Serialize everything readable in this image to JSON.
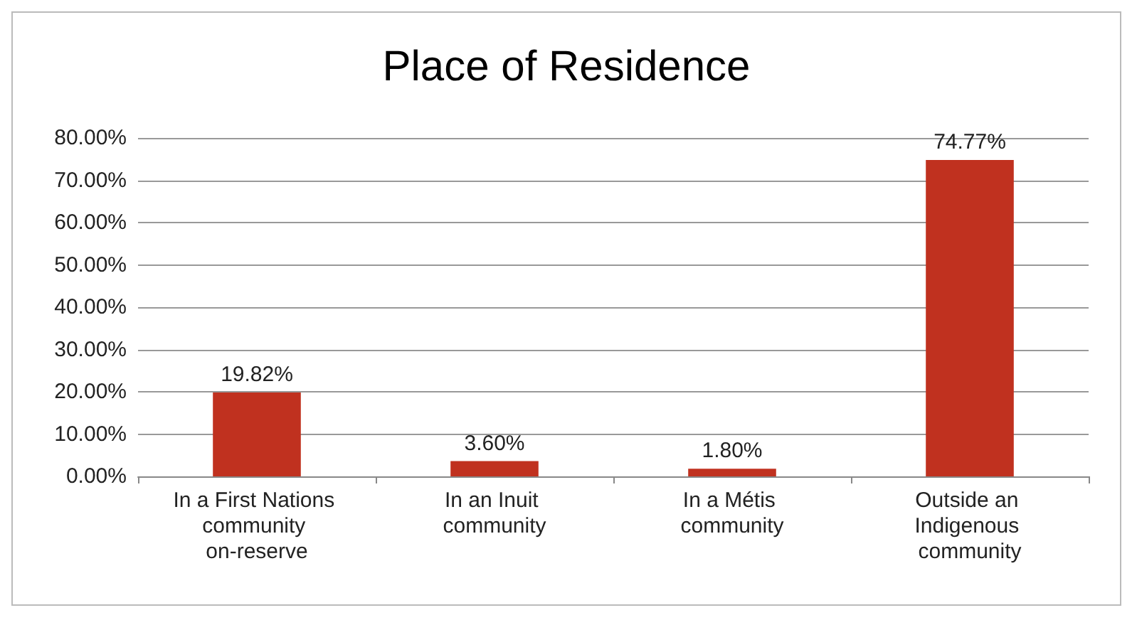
{
  "chart_data": {
    "type": "bar",
    "title": "Place of Residence",
    "categories": [
      "In a First Nations community on-reserve",
      "In an Inuit community",
      "In a Métis community",
      "Outside an Indigenous community"
    ],
    "values": [
      19.82,
      3.6,
      1.8,
      74.77
    ],
    "value_labels": [
      "19.82%",
      "3.60%",
      "1.80%",
      "74.77%"
    ],
    "color": "#c0311f",
    "ylim": [
      0,
      80
    ],
    "yticks": [
      {
        "value": 0,
        "label": "0.00%"
      },
      {
        "value": 10,
        "label": "10.00%"
      },
      {
        "value": 20,
        "label": "20.00%"
      },
      {
        "value": 30,
        "label": "30.00%"
      },
      {
        "value": 40,
        "label": "40.00%"
      },
      {
        "value": 50,
        "label": "50.00%"
      },
      {
        "value": 60,
        "label": "60.00%"
      },
      {
        "value": 70,
        "label": "70.00%"
      },
      {
        "value": 80,
        "label": "80.00%"
      }
    ],
    "grid": true
  }
}
